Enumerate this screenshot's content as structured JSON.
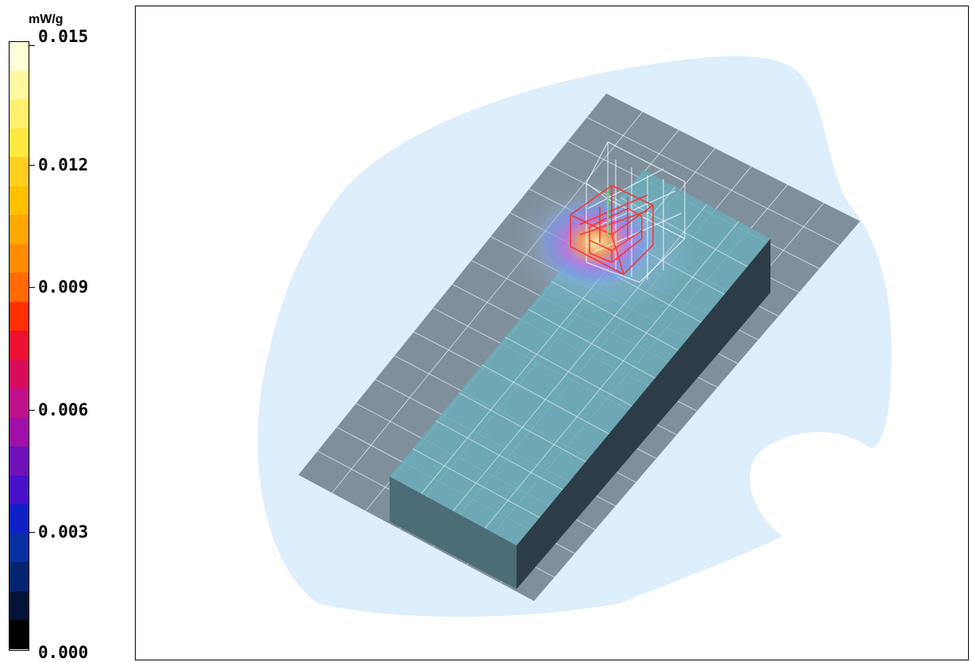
{
  "legend": {
    "unit": "mW/g",
    "ticks": [
      "0.015",
      "0.012",
      "0.009",
      "0.006",
      "0.003",
      "0.000"
    ],
    "min": 0.0,
    "max": 0.015,
    "colors": [
      "#ffffd8",
      "#fff8a0",
      "#fff070",
      "#ffe840",
      "#ffd020",
      "#ffc000",
      "#ffa800",
      "#ff8c00",
      "#ff6a00",
      "#ff3000",
      "#ee1030",
      "#d80c58",
      "#c0108a",
      "#a010a8",
      "#7010b8",
      "#4810c8",
      "#1020c8",
      "#0830a0",
      "#052470",
      "#021438",
      "#000000"
    ]
  },
  "scene": {
    "background_color": "#ffffff",
    "field_color": "#ddeefc",
    "plate_color": "#7f8f9c",
    "box_top_color": "#6aadb8",
    "box_front_color": "#4c6d78",
    "box_side_color": "#2d3d48",
    "grid_color": "#ffffff",
    "scan_box_color": "#ff3030",
    "zoom_box_color": "#ffffff"
  }
}
